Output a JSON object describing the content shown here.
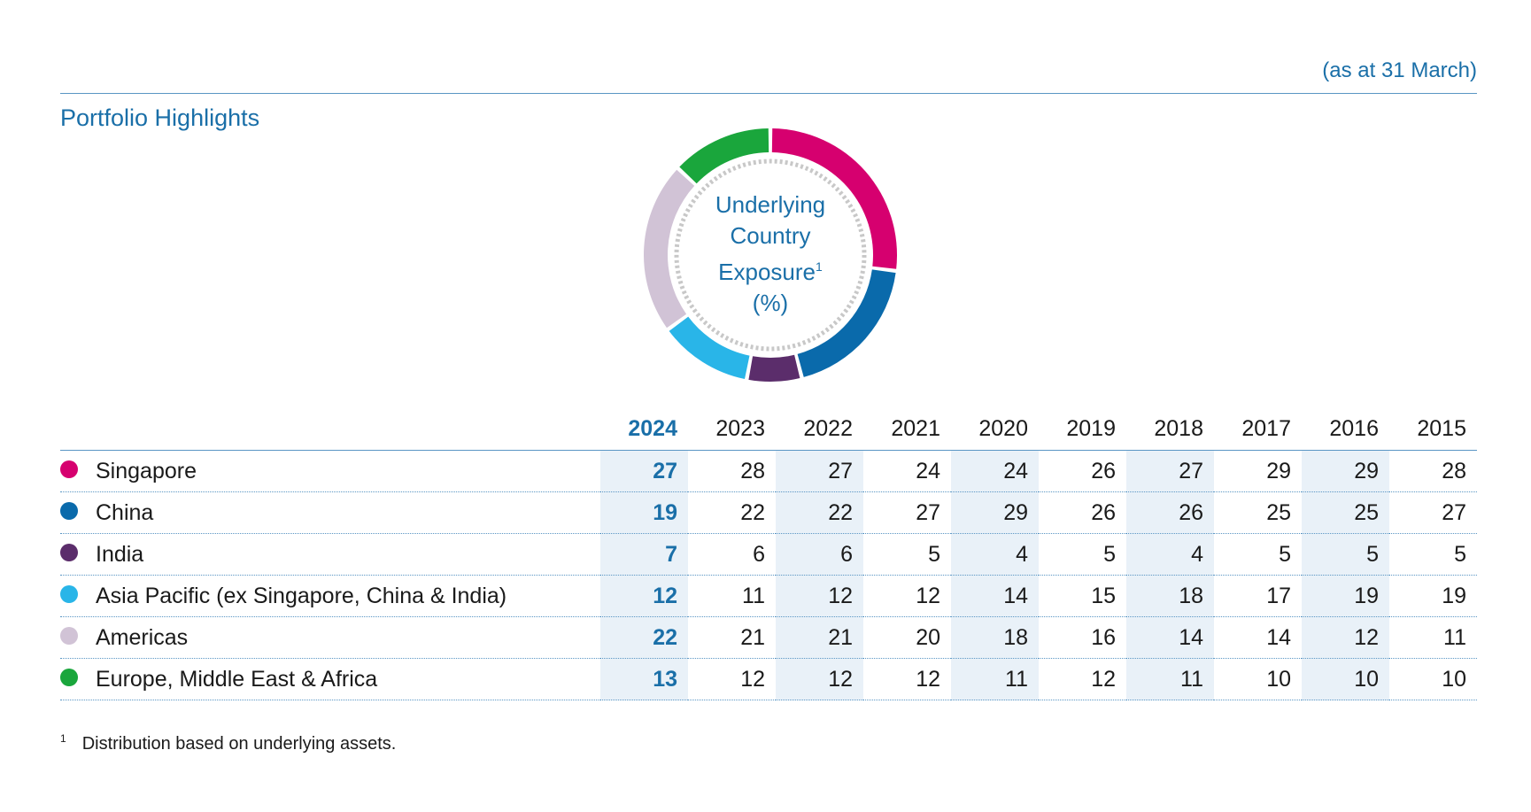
{
  "header": {
    "as_at": "(as at 31 March)",
    "section_title": "Portfolio Highlights"
  },
  "donut": {
    "label_lines": [
      "Underlying",
      "Country",
      "Exposure"
    ],
    "footnote_ref": "1",
    "unit": "(%)"
  },
  "colors": {
    "accent": "#1a6fa8",
    "Singapore": "#d6006f",
    "China": "#0a6aab",
    "India": "#5b2d6b",
    "Asia Pacific (ex Singapore, China & India)": "#29b5e8",
    "Americas": "#d1c3d6",
    "Europe, Middle East & Africa": "#1aa63c"
  },
  "chart_data": {
    "type": "table",
    "donut_year": "2024",
    "columns": [
      "2024",
      "2023",
      "2022",
      "2021",
      "2020",
      "2019",
      "2018",
      "2017",
      "2016",
      "2015"
    ],
    "series": [
      {
        "name": "Singapore",
        "values": [
          27,
          28,
          27,
          24,
          24,
          26,
          27,
          29,
          29,
          28
        ]
      },
      {
        "name": "China",
        "values": [
          19,
          22,
          22,
          27,
          29,
          26,
          26,
          25,
          25,
          27
        ]
      },
      {
        "name": "India",
        "values": [
          7,
          6,
          6,
          5,
          4,
          5,
          4,
          5,
          5,
          5
        ]
      },
      {
        "name": "Asia Pacific (ex Singapore, China & India)",
        "values": [
          12,
          11,
          12,
          12,
          14,
          15,
          18,
          17,
          19,
          19
        ]
      },
      {
        "name": "Americas",
        "values": [
          22,
          21,
          21,
          20,
          18,
          16,
          14,
          14,
          12,
          11
        ]
      },
      {
        "name": "Europe, Middle East & Africa",
        "values": [
          13,
          12,
          12,
          12,
          11,
          12,
          11,
          10,
          10,
          10
        ]
      }
    ]
  },
  "footnote": {
    "marker": "1",
    "text": "Distribution based on underlying assets."
  }
}
